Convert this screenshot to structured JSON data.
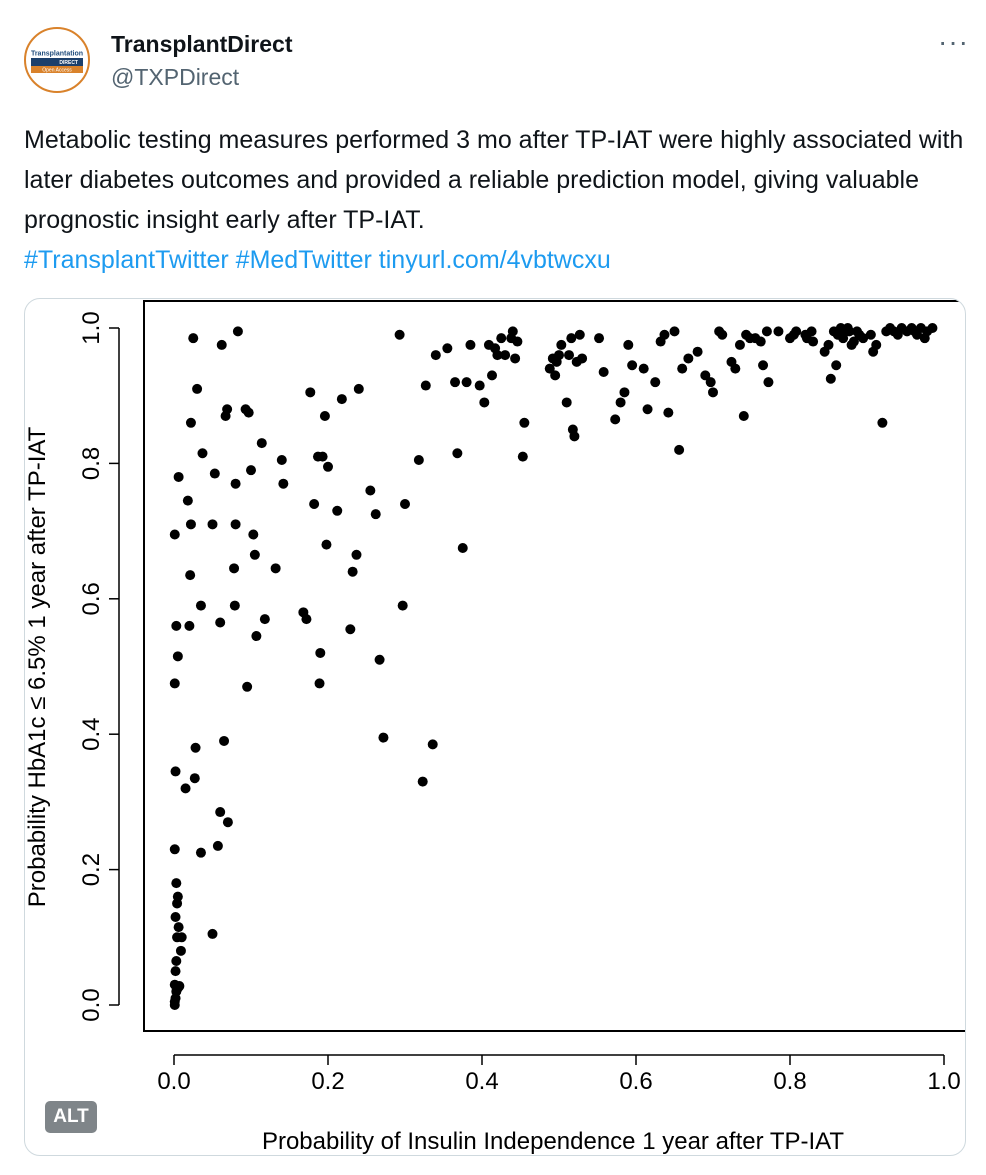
{
  "account": {
    "display_name": "TransplantDirect",
    "handle": "@TXPDirect",
    "avatar_logo_line1": "Transplantation",
    "avatar_logo_line2": "DIRECT",
    "avatar_logo_line3": "Open Access"
  },
  "more_label": "···",
  "tweet": {
    "text": "Metabolic testing measures performed 3 mo after TP-IAT were highly associated with later diabetes outcomes and provided a reliable prediction model, giving valuable prognostic insight early after TP-IAT.",
    "hashtag1": "#TransplantTwitter",
    "hashtag2": "#MedTwitter",
    "link": "tinyurl.com/4vbtwcxu"
  },
  "alt_badge": "ALT",
  "colors": {
    "link": "#1d9bf0",
    "handle": "#536471",
    "avatar_ring": "#d9822b"
  },
  "chart_data": {
    "type": "scatter",
    "xlabel": "Probability of Insulin Independence 1 year after TP-IAT",
    "ylabel": "Probability HbA1c ≤ 6.5% 1 year after TP-IAT",
    "xlim": [
      0.0,
      1.0
    ],
    "ylim": [
      0.0,
      1.0
    ],
    "xticks": [
      "0.0",
      "0.2",
      "0.4",
      "0.6",
      "0.8",
      "1.0"
    ],
    "yticks": [
      "0.0",
      "0.2",
      "0.4",
      "0.6",
      "0.8",
      "1.0"
    ],
    "grid": false,
    "points": [
      [
        0.001,
        0.0
      ],
      [
        0.001,
        0.005
      ],
      [
        0.002,
        0.01
      ],
      [
        0.003,
        0.02
      ],
      [
        0.001,
        0.03
      ],
      [
        0.005,
        0.025
      ],
      [
        0.007,
        0.028
      ],
      [
        0.002,
        0.05
      ],
      [
        0.003,
        0.065
      ],
      [
        0.004,
        0.1
      ],
      [
        0.006,
        0.115
      ],
      [
        0.002,
        0.13
      ],
      [
        0.004,
        0.15
      ],
      [
        0.005,
        0.16
      ],
      [
        0.003,
        0.18
      ],
      [
        0.001,
        0.23
      ],
      [
        0.002,
        0.345
      ],
      [
        0.001,
        0.475
      ],
      [
        0.005,
        0.515
      ],
      [
        0.003,
        0.56
      ],
      [
        0.001,
        0.695
      ],
      [
        0.006,
        0.78
      ],
      [
        0.01,
        0.1
      ],
      [
        0.009,
        0.08
      ],
      [
        0.015,
        0.32
      ],
      [
        0.02,
        0.56
      ],
      [
        0.018,
        0.745
      ],
      [
        0.022,
        0.86
      ],
      [
        0.025,
        0.985
      ],
      [
        0.022,
        0.71
      ],
      [
        0.021,
        0.635
      ],
      [
        0.028,
        0.38
      ],
      [
        0.027,
        0.335
      ],
      [
        0.03,
        0.91
      ],
      [
        0.035,
        0.225
      ],
      [
        0.035,
        0.59
      ],
      [
        0.037,
        0.815
      ],
      [
        0.05,
        0.105
      ],
      [
        0.05,
        0.71
      ],
      [
        0.053,
        0.785
      ],
      [
        0.057,
        0.235
      ],
      [
        0.06,
        0.285
      ],
      [
        0.06,
        0.565
      ],
      [
        0.062,
        0.975
      ],
      [
        0.065,
        0.39
      ],
      [
        0.067,
        0.87
      ],
      [
        0.069,
        0.88
      ],
      [
        0.07,
        0.27
      ],
      [
        0.078,
        0.645
      ],
      [
        0.079,
        0.59
      ],
      [
        0.08,
        0.71
      ],
      [
        0.08,
        0.77
      ],
      [
        0.083,
        0.995
      ],
      [
        0.093,
        0.88
      ],
      [
        0.095,
        0.47
      ],
      [
        0.097,
        0.875
      ],
      [
        0.1,
        0.79
      ],
      [
        0.103,
        0.695
      ],
      [
        0.105,
        0.665
      ],
      [
        0.107,
        0.545
      ],
      [
        0.114,
        0.83
      ],
      [
        0.118,
        0.57
      ],
      [
        0.132,
        0.645
      ],
      [
        0.14,
        0.805
      ],
      [
        0.142,
        0.77
      ],
      [
        0.168,
        0.58
      ],
      [
        0.172,
        0.57
      ],
      [
        0.177,
        0.905
      ],
      [
        0.182,
        0.74
      ],
      [
        0.187,
        0.81
      ],
      [
        0.189,
        0.475
      ],
      [
        0.19,
        0.52
      ],
      [
        0.193,
        0.81
      ],
      [
        0.196,
        0.87
      ],
      [
        0.198,
        0.68
      ],
      [
        0.2,
        0.795
      ],
      [
        0.212,
        0.73
      ],
      [
        0.218,
        0.895
      ],
      [
        0.229,
        0.555
      ],
      [
        0.232,
        0.64
      ],
      [
        0.237,
        0.665
      ],
      [
        0.24,
        0.91
      ],
      [
        0.255,
        0.76
      ],
      [
        0.262,
        0.725
      ],
      [
        0.267,
        0.51
      ],
      [
        0.272,
        0.395
      ],
      [
        0.293,
        0.99
      ],
      [
        0.297,
        0.59
      ],
      [
        0.3,
        0.74
      ],
      [
        0.318,
        0.805
      ],
      [
        0.323,
        0.33
      ],
      [
        0.327,
        0.915
      ],
      [
        0.336,
        0.385
      ],
      [
        0.34,
        0.96
      ],
      [
        0.355,
        0.97
      ],
      [
        0.365,
        0.92
      ],
      [
        0.368,
        0.815
      ],
      [
        0.375,
        0.675
      ],
      [
        0.38,
        0.92
      ],
      [
        0.385,
        0.975
      ],
      [
        0.397,
        0.915
      ],
      [
        0.403,
        0.89
      ],
      [
        0.409,
        0.975
      ],
      [
        0.413,
        0.93
      ],
      [
        0.417,
        0.97
      ],
      [
        0.42,
        0.96
      ],
      [
        0.425,
        0.985
      ],
      [
        0.43,
        0.96
      ],
      [
        0.438,
        0.985
      ],
      [
        0.44,
        0.995
      ],
      [
        0.443,
        0.955
      ],
      [
        0.446,
        0.98
      ],
      [
        0.453,
        0.81
      ],
      [
        0.455,
        0.86
      ],
      [
        0.488,
        0.94
      ],
      [
        0.492,
        0.955
      ],
      [
        0.495,
        0.93
      ],
      [
        0.497,
        0.95
      ],
      [
        0.5,
        0.96
      ],
      [
        0.503,
        0.975
      ],
      [
        0.51,
        0.89
      ],
      [
        0.513,
        0.96
      ],
      [
        0.516,
        0.985
      ],
      [
        0.518,
        0.85
      ],
      [
        0.52,
        0.84
      ],
      [
        0.523,
        0.95
      ],
      [
        0.527,
        0.99
      ],
      [
        0.53,
        0.955
      ],
      [
        0.552,
        0.985
      ],
      [
        0.558,
        0.935
      ],
      [
        0.573,
        0.865
      ],
      [
        0.58,
        0.89
      ],
      [
        0.585,
        0.905
      ],
      [
        0.59,
        0.975
      ],
      [
        0.595,
        0.945
      ],
      [
        0.61,
        0.94
      ],
      [
        0.615,
        0.88
      ],
      [
        0.625,
        0.92
      ],
      [
        0.632,
        0.98
      ],
      [
        0.637,
        0.99
      ],
      [
        0.642,
        0.875
      ],
      [
        0.65,
        0.995
      ],
      [
        0.656,
        0.82
      ],
      [
        0.66,
        0.94
      ],
      [
        0.668,
        0.955
      ],
      [
        0.68,
        0.965
      ],
      [
        0.69,
        0.93
      ],
      [
        0.697,
        0.92
      ],
      [
        0.7,
        0.905
      ],
      [
        0.708,
        0.995
      ],
      [
        0.712,
        0.99
      ],
      [
        0.724,
        0.95
      ],
      [
        0.729,
        0.94
      ],
      [
        0.735,
        0.975
      ],
      [
        0.74,
        0.87
      ],
      [
        0.743,
        0.99
      ],
      [
        0.748,
        0.985
      ],
      [
        0.755,
        0.985
      ],
      [
        0.762,
        0.98
      ],
      [
        0.765,
        0.945
      ],
      [
        0.77,
        0.995
      ],
      [
        0.772,
        0.92
      ],
      [
        0.785,
        0.995
      ],
      [
        0.8,
        0.985
      ],
      [
        0.805,
        0.99
      ],
      [
        0.808,
        0.995
      ],
      [
        0.82,
        0.99
      ],
      [
        0.822,
        0.985
      ],
      [
        0.828,
        0.995
      ],
      [
        0.83,
        0.98
      ],
      [
        0.845,
        0.965
      ],
      [
        0.85,
        0.975
      ],
      [
        0.853,
        0.925
      ],
      [
        0.857,
        0.995
      ],
      [
        0.86,
        0.945
      ],
      [
        0.862,
        0.99
      ],
      [
        0.866,
        1.0
      ],
      [
        0.869,
        0.985
      ],
      [
        0.87,
        0.995
      ],
      [
        0.875,
        1.0
      ],
      [
        0.877,
        0.995
      ],
      [
        0.88,
        0.975
      ],
      [
        0.883,
        0.98
      ],
      [
        0.887,
        0.995
      ],
      [
        0.89,
        0.99
      ],
      [
        0.895,
        0.985
      ],
      [
        0.905,
        0.99
      ],
      [
        0.908,
        0.965
      ],
      [
        0.912,
        0.975
      ],
      [
        0.92,
        0.86
      ],
      [
        0.925,
        0.995
      ],
      [
        0.93,
        1.0
      ],
      [
        0.935,
        0.995
      ],
      [
        0.94,
        0.99
      ],
      [
        0.945,
        1.0
      ],
      [
        0.952,
        0.995
      ],
      [
        0.958,
        1.0
      ],
      [
        0.962,
        0.995
      ],
      [
        0.965,
        0.99
      ],
      [
        0.97,
        1.0
      ],
      [
        0.975,
        0.985
      ],
      [
        0.978,
        0.995
      ],
      [
        0.985,
        1.0
      ]
    ]
  }
}
